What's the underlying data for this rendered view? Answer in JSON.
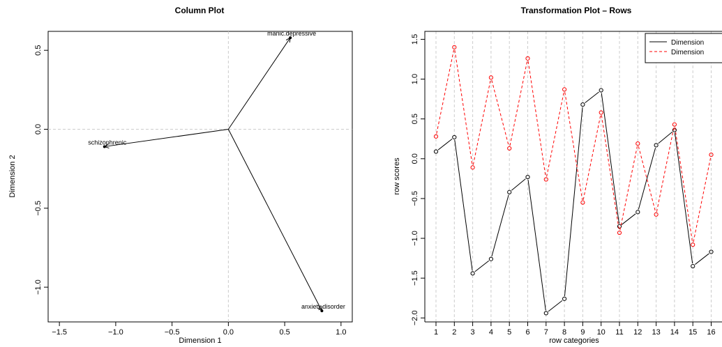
{
  "chart_data": [
    {
      "type": "biplot",
      "title": "Column Plot",
      "xlabel": "Dimension 1",
      "ylabel": "Dimension 2",
      "xlim": [
        -1.6,
        1.1
      ],
      "ylim": [
        -1.22,
        0.62
      ],
      "xticks": [
        -1.5,
        -1.0,
        -0.5,
        0.0,
        0.5,
        1.0
      ],
      "xtick_labels": [
        "−1.5",
        "−1.0",
        "−0.5",
        "0.0",
        "0.5",
        "1.0"
      ],
      "yticks": [
        -1.0,
        -0.5,
        0.0,
        0.5
      ],
      "ytick_labels": [
        "−1.0",
        "−0.5",
        "0.0",
        "0.5"
      ],
      "reference_lines": [
        0,
        0
      ],
      "points": [
        {
          "label": "manic.depressive",
          "x": 0.55,
          "y": 0.58
        },
        {
          "label": "schizophrenic",
          "x": -1.1,
          "y": -0.11
        },
        {
          "label": "anxiety.disorder",
          "x": 0.83,
          "y": -1.15
        }
      ]
    },
    {
      "type": "line",
      "title": "Transformation Plot – Rows",
      "xlabel": "row categories",
      "ylabel": "row scores",
      "xlim": [
        0.5,
        16.5
      ],
      "ylim": [
        -2.05,
        1.6
      ],
      "categories": [
        "1",
        "2",
        "3",
        "4",
        "5",
        "6",
        "7",
        "8",
        "9",
        "10",
        "11",
        "12",
        "13",
        "14",
        "15",
        "16"
      ],
      "yticks": [
        -2.0,
        -1.5,
        -1.0,
        -0.5,
        0.0,
        0.5,
        1.0,
        1.5
      ],
      "ytick_labels": [
        "−2.0",
        "−1.5",
        "−1.0",
        "−0.5",
        "0.0",
        "0.5",
        "1.0",
        "1.5"
      ],
      "legend_position": "top-right",
      "series": [
        {
          "name": "Dimension",
          "color": "#000000",
          "dash": "solid",
          "values": [
            0.09,
            0.27,
            -1.44,
            -1.26,
            -0.42,
            -0.23,
            -1.94,
            -1.76,
            0.68,
            0.86,
            -0.85,
            -0.67,
            0.17,
            0.36,
            -1.35,
            -1.17
          ]
        },
        {
          "name": "Dimension",
          "color": "#ff0000",
          "dash": "dashed",
          "values": [
            0.28,
            1.4,
            -0.11,
            1.02,
            0.13,
            1.26,
            -0.26,
            0.87,
            -0.55,
            0.58,
            -0.93,
            0.19,
            -0.7,
            0.43,
            -1.08,
            0.05
          ]
        }
      ]
    }
  ]
}
